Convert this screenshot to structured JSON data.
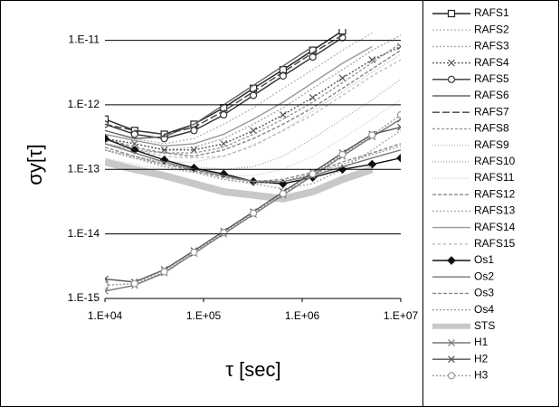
{
  "chart_data": {
    "type": "line",
    "log_x": true,
    "log_y": true,
    "grid": true,
    "legend": "right",
    "xlabel": "τ [sec]",
    "ylabel": "σy[τ]",
    "xlim": [
      10000,
      10000000
    ],
    "ylim": [
      1e-15,
      1.5e-11
    ],
    "xticks": [
      {
        "value": 10000,
        "label": "1.E+04"
      },
      {
        "value": 100000,
        "label": "1.E+05"
      },
      {
        "value": 1000000,
        "label": "1.E+06"
      },
      {
        "value": 10000000,
        "label": "1.E+07"
      }
    ],
    "yticks": [
      {
        "value": 1e-15,
        "label": "1.E-15"
      },
      {
        "value": 1e-14,
        "label": "1.E-14"
      },
      {
        "value": 1e-13,
        "label": "1.E-13"
      },
      {
        "value": 1e-12,
        "label": "1.E-12"
      },
      {
        "value": 1e-11,
        "label": "1.E-11"
      }
    ],
    "x": [
      10000,
      20000,
      40000,
      80000,
      160000,
      320000,
      640000,
      1280000,
      2560000,
      5120000,
      10000000
    ],
    "series": [
      {
        "name": "RAFS1",
        "color": "#222222",
        "dash": "",
        "marker": "square",
        "values": [
          6e-13,
          4e-13,
          3.5e-13,
          5e-13,
          9e-13,
          1.8e-12,
          3.5e-12,
          7e-12,
          1.4e-11,
          null,
          null
        ]
      },
      {
        "name": "RAFS2",
        "color": "#bbbbbb",
        "dash": "2 2",
        "marker": "none",
        "values": [
          4e-13,
          3e-13,
          2.5e-13,
          3e-13,
          5e-13,
          9e-13,
          1.8e-12,
          3.5e-12,
          7e-12,
          1.3e-11,
          null
        ]
      },
      {
        "name": "RAFS3",
        "color": "#aaaaaa",
        "dash": "2 2",
        "marker": "none",
        "values": [
          3e-13,
          2.5e-13,
          2e-13,
          2.2e-13,
          3e-13,
          5e-13,
          9e-13,
          1.8e-12,
          3.5e-12,
          7e-12,
          1.2e-11
        ]
      },
      {
        "name": "RAFS4",
        "color": "#555555",
        "dash": "2 2",
        "marker": "x",
        "values": [
          3e-13,
          2.5e-13,
          2e-13,
          2e-13,
          2.5e-13,
          4e-13,
          7e-13,
          1.3e-12,
          2.6e-12,
          5e-12,
          8e-12
        ]
      },
      {
        "name": "RAFS5",
        "color": "#333333",
        "dash": "",
        "marker": "circle",
        "values": [
          5e-13,
          3.5e-13,
          3e-13,
          4e-13,
          7e-13,
          1.4e-12,
          2.8e-12,
          5.5e-12,
          1.1e-11,
          null,
          null
        ]
      },
      {
        "name": "RAFS6",
        "color": "#666666",
        "dash": "",
        "marker": "none",
        "values": [
          4e-13,
          3e-13,
          3.2e-13,
          5e-13,
          1e-12,
          2e-12,
          4e-12,
          8e-12,
          null,
          null,
          null
        ]
      },
      {
        "name": "RAFS7",
        "color": "#444444",
        "dash": "8 3",
        "marker": "none",
        "values": [
          5e-13,
          4e-13,
          3.5e-13,
          4.5e-13,
          8e-13,
          1.6e-12,
          3.2e-12,
          6.4e-12,
          1.2e-11,
          null,
          null
        ]
      },
      {
        "name": "RAFS8",
        "color": "#999999",
        "dash": "3 2",
        "marker": "none",
        "values": [
          2.5e-13,
          2e-13,
          1.8e-13,
          1.8e-13,
          2.2e-13,
          3.5e-13,
          6e-13,
          1.1e-12,
          2.2e-12,
          4.5e-12,
          9e-12
        ]
      },
      {
        "name": "RAFS9",
        "color": "#bbbbbb",
        "dash": "1 2",
        "marker": "none",
        "values": [
          2e-13,
          1.5e-13,
          1.3e-13,
          1.3e-13,
          1.6e-13,
          2.4e-13,
          4e-13,
          8e-13,
          1.6e-12,
          3.2e-12,
          6e-12
        ]
      },
      {
        "name": "RAFS10",
        "color": "#aaaaaa",
        "dash": "1 2",
        "marker": "none",
        "values": [
          2e-13,
          1.6e-13,
          1.3e-13,
          1.1e-13,
          1e-13,
          1.1e-13,
          1.6e-13,
          3e-13,
          6e-13,
          1.2e-12,
          2.5e-12
        ]
      },
      {
        "name": "RAFS11",
        "color": "#cccccc",
        "dash": "1 2",
        "marker": "none",
        "values": [
          1.5e-13,
          1.2e-13,
          1e-13,
          9e-14,
          8e-14,
          8e-14,
          1e-13,
          1.6e-13,
          3e-13,
          6e-13,
          1.2e-12
        ]
      },
      {
        "name": "RAFS12",
        "color": "#888888",
        "dash": "4 2",
        "marker": "none",
        "values": [
          3e-13,
          2.2e-13,
          1.8e-13,
          1.6e-13,
          2e-13,
          3e-13,
          5e-13,
          9e-13,
          1.8e-12,
          3.6e-12,
          7e-12
        ]
      },
      {
        "name": "RAFS13",
        "color": "#aaaaaa",
        "dash": "2 2",
        "marker": "none",
        "values": [
          2e-13,
          1.5e-13,
          1.2e-13,
          1e-13,
          8e-14,
          6e-14,
          5e-14,
          6e-14,
          1e-13,
          2e-13,
          4e-13
        ]
      },
      {
        "name": "RAFS14",
        "color": "#999999",
        "dash": "",
        "marker": "none",
        "values": [
          3.5e-13,
          2.8e-13,
          2.3e-13,
          2.5e-13,
          3.5e-13,
          6e-13,
          1.1e-12,
          2.2e-12,
          4.4e-12,
          8e-12,
          null
        ]
      },
      {
        "name": "RAFS15",
        "color": "#bbbbbb",
        "dash": "3 3",
        "marker": "none",
        "values": [
          2.5e-13,
          2e-13,
          1.6e-13,
          1.5e-13,
          1.6e-13,
          2.3e-13,
          4e-13,
          7e-13,
          1.4e-12,
          2.8e-12,
          5e-12
        ]
      },
      {
        "name": "Os1",
        "color": "#111111",
        "dash": "",
        "marker": "diamond",
        "values": [
          3e-13,
          2e-13,
          1.4e-13,
          1.05e-13,
          8.5e-14,
          6.5e-14,
          6e-14,
          7.5e-14,
          1e-13,
          1.2e-13,
          1.5e-13
        ]
      },
      {
        "name": "Os2",
        "color": "#777777",
        "dash": "",
        "marker": "none",
        "values": [
          2.5e-13,
          1.8e-13,
          1.3e-13,
          1e-13,
          8e-14,
          6.5e-14,
          6.5e-14,
          8e-14,
          1.1e-13,
          1.5e-13,
          2e-13
        ]
      },
      {
        "name": "Os3",
        "color": "#888888",
        "dash": "4 2",
        "marker": "none",
        "values": [
          2.2e-13,
          1.6e-13,
          1.2e-13,
          9.5e-14,
          7.5e-14,
          6.5e-14,
          7e-14,
          9e-14,
          1.3e-13,
          1.8e-13,
          2.5e-13
        ]
      },
      {
        "name": "Os4",
        "color": "#999999",
        "dash": "2 2",
        "marker": "none",
        "values": [
          2e-13,
          1.5e-13,
          1.1e-13,
          9e-14,
          7e-14,
          6e-14,
          6.5e-14,
          8.5e-14,
          1.2e-13,
          1.7e-13,
          2.3e-13
        ]
      },
      {
        "name": "STS",
        "color": "#c8c8c8",
        "dash": "",
        "marker": "none",
        "width": 8,
        "values": [
          1.3e-13,
          1e-13,
          8e-14,
          6e-14,
          4.5e-14,
          4e-14,
          3.5e-14,
          4.5e-14,
          7e-14,
          1e-13,
          null
        ]
      },
      {
        "name": "H1",
        "color": "#777777",
        "dash": "",
        "marker": "x",
        "values": [
          1.3e-15,
          1.6e-15,
          2.5e-15,
          5e-15,
          1e-14,
          2e-14,
          4e-14,
          8e-14,
          1.6e-13,
          3.2e-13,
          6e-13
        ]
      },
      {
        "name": "H2",
        "color": "#555555",
        "dash": "",
        "marker": "x",
        "values": [
          2e-15,
          1.8e-15,
          2.8e-15,
          5.5e-15,
          1.1e-14,
          2.2e-14,
          4.5e-14,
          9e-14,
          1.8e-13,
          3.5e-13,
          4.5e-13
        ]
      },
      {
        "name": "H3",
        "color": "#999999",
        "dash": "2 2",
        "marker": "circle",
        "values": [
          1.6e-15,
          1.7e-15,
          2.6e-15,
          5.2e-15,
          1.05e-14,
          2.1e-14,
          4.2e-14,
          8.5e-14,
          1.7e-13,
          3.4e-13,
          7e-13
        ]
      }
    ]
  }
}
